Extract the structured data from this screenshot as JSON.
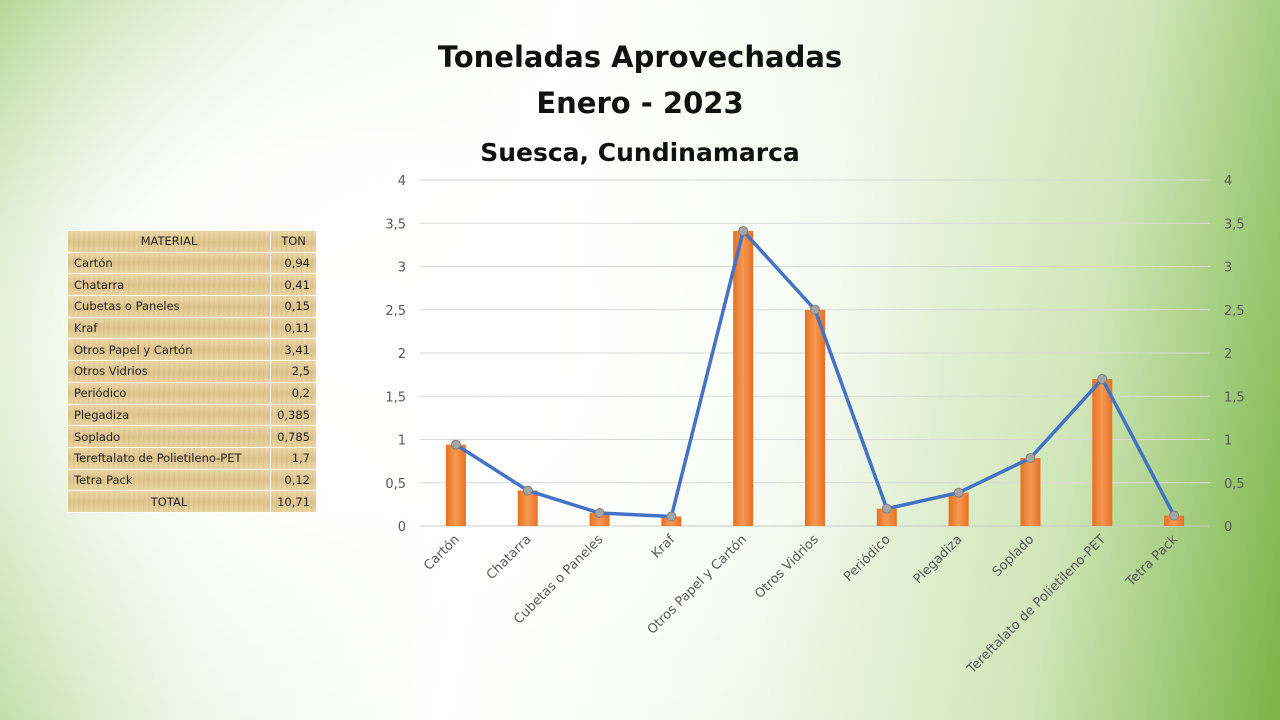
{
  "title_line1": "Toneladas Aprovechadas",
  "title_line2": "Enero - 2023",
  "subtitle": "Suesca, Cundinamarca",
  "table": {
    "header_material": "MATERIAL",
    "header_ton": "TON",
    "rows": [
      {
        "material": "Cartón",
        "ton": "0,94"
      },
      {
        "material": "Chatarra",
        "ton": "0,41"
      },
      {
        "material": "Cubetas o Paneles",
        "ton": "0,15"
      },
      {
        "material": "Kraf",
        "ton": "0,11"
      },
      {
        "material": "Otros Papel y Cartón",
        "ton": "3,41"
      },
      {
        "material": "Otros Vidrios",
        "ton": "2,5"
      },
      {
        "material": "Periódico",
        "ton": "0,2"
      },
      {
        "material": "Plegadiza",
        "ton": "0,385"
      },
      {
        "material": "Soplado",
        "ton": "0,785"
      },
      {
        "material": "Tereftalato de Polietileno-PET",
        "ton": "1,7"
      },
      {
        "material": "Tetra Pack",
        "ton": "0,12"
      }
    ],
    "total_label": "TOTAL",
    "total_value": "10,71"
  },
  "chart_data": {
    "type": "bar",
    "categories": [
      "Cartón",
      "Chatarra",
      "Cubetas o Paneles",
      "Kraf",
      "Otros Papel y Cartón",
      "Otros Vidrios",
      "Periódico",
      "Plegadiza",
      "Soplado",
      "Tereftalato de Polietileno-PET",
      "Tetra Pack"
    ],
    "series": [
      {
        "type": "bar",
        "axis": "left",
        "color": "#ed7d31",
        "values": [
          0.94,
          0.41,
          0.15,
          0.11,
          3.41,
          2.5,
          0.2,
          0.385,
          0.785,
          1.7,
          0.12
        ]
      },
      {
        "type": "line",
        "axis": "right",
        "color": "#4472c4",
        "marker_color": "#a5a5a5",
        "values": [
          0.94,
          0.41,
          0.15,
          0.11,
          3.41,
          2.5,
          0.2,
          0.385,
          0.785,
          1.7,
          0.12
        ]
      }
    ],
    "ylim": [
      0,
      4
    ],
    "y2lim": [
      0,
      4
    ],
    "yticks": [
      "0",
      "0,5",
      "1",
      "1,5",
      "2",
      "2,5",
      "3",
      "3,5",
      "4"
    ],
    "y2ticks": [
      "0",
      "0,5",
      "1",
      "1,5",
      "2",
      "2,5",
      "3",
      "3,5",
      "4"
    ],
    "grid": true,
    "legend": "none"
  }
}
